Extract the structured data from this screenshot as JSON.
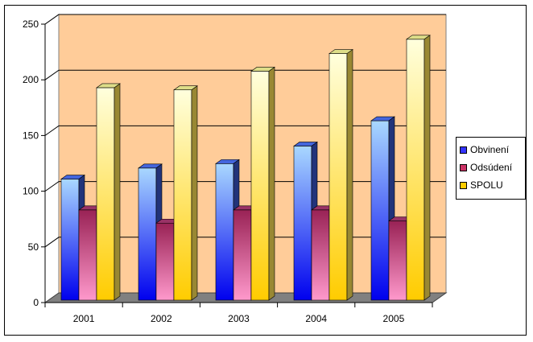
{
  "chart_data": {
    "type": "bar",
    "categories": [
      "2001",
      "2002",
      "2003",
      "2004",
      "2005"
    ],
    "series": [
      {
        "name": "Obvinení",
        "values": [
          110,
          120,
          124,
          140,
          163
        ],
        "color": "#3333ff"
      },
      {
        "name": "Odsúdení",
        "values": [
          82,
          70,
          82,
          82,
          72
        ],
        "color": "#cc3366"
      },
      {
        "name": "SPOLU",
        "values": [
          193,
          191,
          208,
          224,
          237
        ],
        "color": "#ffcc00"
      }
    ],
    "ylim": [
      0,
      250
    ],
    "yticks": [
      "0",
      "50",
      "100",
      "150",
      "200",
      "250"
    ],
    "grid": true,
    "legend_position": "right",
    "wall_color": "#ffcc99",
    "floor_color": "#808080",
    "view": "3d"
  }
}
